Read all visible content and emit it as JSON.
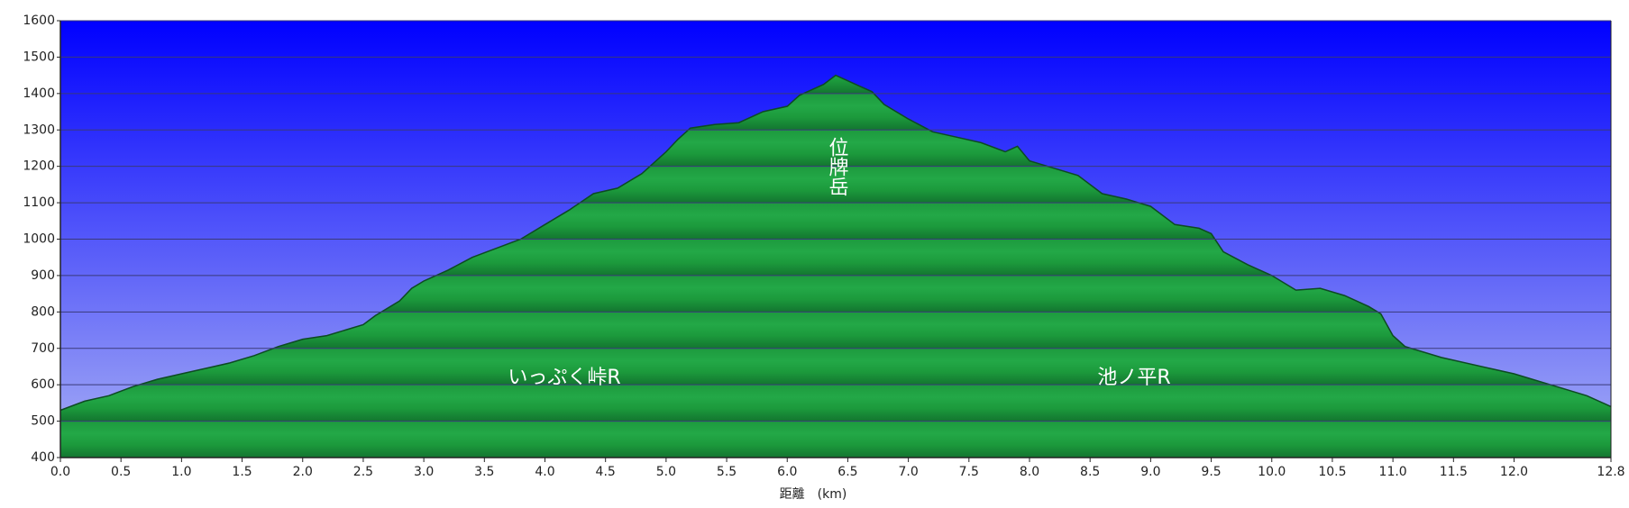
{
  "chart_data": {
    "type": "area",
    "x_label": "距離　(km)",
    "annotations": [
      "いっぷく峠R",
      "位牌岳",
      "池ノ平R"
    ],
    "series": [
      {
        "color": "#1fa043",
        "x": [
          0.0,
          0.2,
          0.4,
          0.6,
          0.8,
          1.0,
          1.2,
          1.4,
          1.6,
          1.8,
          2.0,
          2.2,
          2.4,
          2.5,
          2.6,
          2.8,
          2.9,
          3.0,
          3.2,
          3.4,
          3.6,
          3.8,
          4.0,
          4.2,
          4.4,
          4.6,
          4.8,
          5.0,
          5.1,
          5.2,
          5.4,
          5.6,
          5.8,
          6.0,
          6.1,
          6.2,
          6.3,
          6.4,
          6.5,
          6.6,
          6.7,
          6.8,
          7.0,
          7.2,
          7.4,
          7.6,
          7.8,
          7.9,
          8.0,
          8.2,
          8.4,
          8.6,
          8.8,
          9.0,
          9.2,
          9.4,
          9.5,
          9.6,
          9.8,
          10.0,
          10.2,
          10.4,
          10.6,
          10.8,
          10.9,
          11.0,
          11.1,
          11.4,
          11.8,
          12.0,
          12.4,
          12.6,
          12.8
        ],
        "values": [
          530,
          555,
          570,
          595,
          615,
          630,
          645,
          660,
          680,
          705,
          725,
          735,
          755,
          765,
          790,
          830,
          865,
          885,
          915,
          950,
          975,
          1000,
          1040,
          1080,
          1125,
          1140,
          1180,
          1240,
          1275,
          1305,
          1315,
          1320,
          1350,
          1365,
          1395,
          1410,
          1425,
          1450,
          1435,
          1420,
          1405,
          1370,
          1330,
          1295,
          1280,
          1265,
          1240,
          1255,
          1215,
          1195,
          1175,
          1125,
          1110,
          1090,
          1040,
          1030,
          1015,
          965,
          930,
          900,
          860,
          865,
          845,
          815,
          795,
          735,
          705,
          675,
          645,
          630,
          590,
          570,
          540
        ]
      }
    ],
    "xlim": [
      0,
      12.8
    ],
    "xticks": [
      {
        "value": 0,
        "label": "0.0"
      },
      0.5,
      {
        "value": 1,
        "label": "1.0"
      },
      1.5,
      {
        "value": 2,
        "label": "2.0"
      },
      2.5,
      {
        "value": 3,
        "label": "3.0"
      },
      3.5,
      {
        "value": 4,
        "label": "4.0"
      },
      4.5,
      {
        "value": 5,
        "label": "5.0"
      },
      5.5,
      {
        "value": 6,
        "label": "6.0"
      },
      6.5,
      {
        "value": 7,
        "label": "7.0"
      },
      7.5,
      {
        "value": 8,
        "label": "8.0"
      },
      8.5,
      {
        "value": 9,
        "label": "9.0"
      },
      9.5,
      {
        "value": 10,
        "label": "10.0"
      },
      10.5,
      {
        "value": 11,
        "label": "11.0"
      },
      11.5,
      {
        "value": 12,
        "label": "12.0"
      },
      12.8
    ],
    "ylim": [
      400,
      1600
    ],
    "yticks": [
      400,
      500,
      600,
      700,
      800,
      900,
      1000,
      1100,
      1200,
      1300,
      1400,
      1500,
      1600
    ],
    "grid": true
  }
}
